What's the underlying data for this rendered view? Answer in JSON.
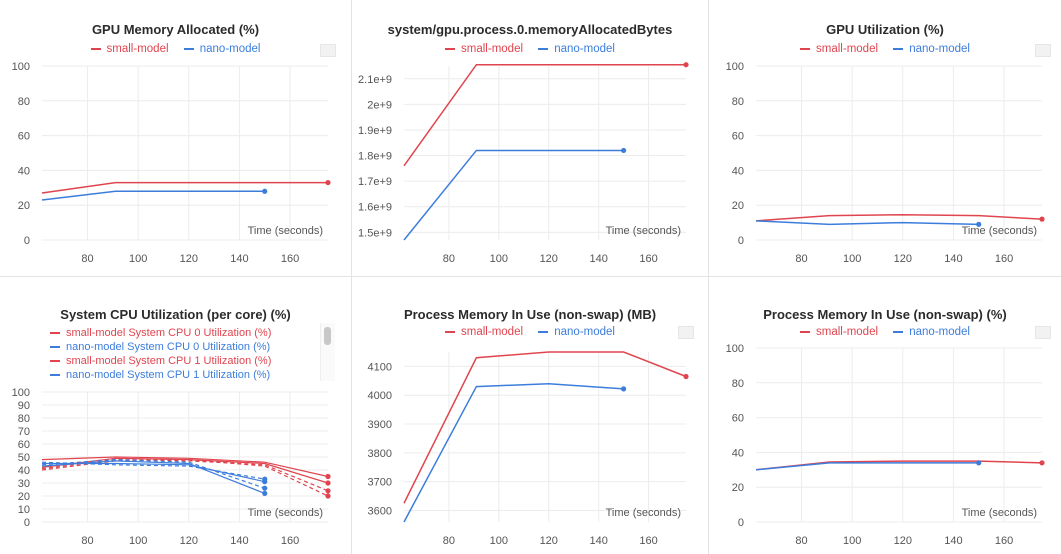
{
  "colors": {
    "red": "#e0454f",
    "blue": "#3c7ddc"
  },
  "series_names": {
    "red": "small-model",
    "blue": "nano-model"
  },
  "time_label": "Time (seconds)",
  "x_ticks": [
    "80",
    "100",
    "120",
    "140",
    "160"
  ],
  "panels": [
    {
      "title": "GPU Memory Allocated (%)",
      "y_ticks": [
        "0",
        "20",
        "40",
        "60",
        "80",
        "100"
      ],
      "chart_data": {
        "type": "line",
        "ylim": [
          0,
          100
        ],
        "xlim": [
          62,
          175
        ],
        "xlabel": "Time (seconds)",
        "series": [
          {
            "name": "small-model",
            "x": [
              62,
              91,
              120,
              150,
              175
            ],
            "y": [
              27,
              33,
              33,
              33,
              33
            ]
          },
          {
            "name": "nano-model",
            "x": [
              62,
              91,
              120,
              150
            ],
            "y": [
              23,
              28,
              28,
              28
            ]
          }
        ]
      }
    },
    {
      "title": "system/gpu.process.0.memoryAllocatedBytes",
      "y_ticks": [
        "1.5e+9",
        "1.6e+9",
        "1.7e+9",
        "1.8e+9",
        "1.9e+9",
        "2e+9",
        "2.1e+9"
      ],
      "chart_data": {
        "type": "line",
        "ylim": [
          1470000000.0,
          2150000000.0
        ],
        "xlim": [
          62,
          175
        ],
        "xlabel": "Time (seconds)",
        "series": [
          {
            "name": "small-model",
            "x": [
              62,
              91,
              120,
              150,
              175
            ],
            "y": [
              1760000000.0,
              2155000000.0,
              2155000000.0,
              2155000000.0,
              2155000000.0
            ]
          },
          {
            "name": "nano-model",
            "x": [
              62,
              91,
              120,
              150
            ],
            "y": [
              1470000000.0,
              1820000000.0,
              1820000000.0,
              1820000000.0
            ]
          }
        ]
      }
    },
    {
      "title": "GPU Utilization (%)",
      "y_ticks": [
        "0",
        "20",
        "40",
        "60",
        "80",
        "100"
      ],
      "chart_data": {
        "type": "line",
        "ylim": [
          0,
          100
        ],
        "xlim": [
          62,
          175
        ],
        "xlabel": "Time (seconds)",
        "series": [
          {
            "name": "small-model",
            "x": [
              62,
              91,
              120,
              150,
              175
            ],
            "y": [
              11,
              14,
              14.5,
              14,
              12
            ]
          },
          {
            "name": "nano-model",
            "x": [
              62,
              91,
              120,
              150
            ],
            "y": [
              11,
              9,
              10,
              9
            ]
          }
        ]
      }
    },
    {
      "title": "System CPU Utilization (per core) (%)",
      "y_ticks": [
        "0",
        "10",
        "20",
        "30",
        "40",
        "50",
        "60",
        "70",
        "80",
        "90",
        "100"
      ],
      "legend_rows": [
        {
          "label": "small-model System CPU 0 Utilization (%)",
          "color": "red",
          "dashed": false
        },
        {
          "label": "nano-model System CPU 0 Utilization (%)",
          "color": "blue",
          "dashed": false
        },
        {
          "label": "small-model System CPU 1 Utilization (%)",
          "color": "red",
          "dashed": true
        },
        {
          "label": "nano-model System CPU 1 Utilization (%)",
          "color": "blue",
          "dashed": true
        }
      ],
      "chart_data": {
        "type": "line",
        "ylim": [
          0,
          100
        ],
        "xlim": [
          62,
          175
        ],
        "xlabel": "Time (seconds)",
        "series": [
          {
            "name": "small-model System CPU 0 Utilization (%)",
            "x": [
              62,
              91,
              120,
              150,
              175
            ],
            "y": [
              42,
              49,
              48,
              45,
              30
            ]
          },
          {
            "name": "small-model System CPU 0 Utilization (%)",
            "x": [
              62,
              91,
              120,
              150,
              175
            ],
            "y": [
              41,
              48,
              47,
              44,
              24
            ]
          },
          {
            "name": "small-model System CPU 1 Utilization (%)",
            "x": [
              62,
              91,
              120,
              150,
              175
            ],
            "y": [
              48,
              50,
              49,
              46,
              35
            ]
          },
          {
            "name": "small-model System CPU 1 Utilization (%)",
            "x": [
              62,
              91,
              120,
              150,
              175
            ],
            "y": [
              40,
              47,
              48,
              43,
              20
            ]
          },
          {
            "name": "nano-model System CPU 0 Utilization (%)",
            "x": [
              62,
              91,
              120,
              150
            ],
            "y": [
              45,
              45,
              44,
              31
            ]
          },
          {
            "name": "nano-model System CPU 0 Utilization (%)",
            "x": [
              62,
              91,
              120,
              150
            ],
            "y": [
              44,
              48,
              46,
              26
            ]
          },
          {
            "name": "nano-model System CPU 1 Utilization (%)",
            "x": [
              62,
              91,
              120,
              150
            ],
            "y": [
              43,
              47,
              45,
              22
            ]
          },
          {
            "name": "nano-model System CPU 1 Utilization (%)",
            "x": [
              62,
              91,
              120,
              150
            ],
            "y": [
              46,
              44,
              43,
              33
            ]
          }
        ]
      }
    },
    {
      "title": "Process Memory In Use (non-swap) (MB)",
      "y_ticks": [
        "3600",
        "3700",
        "3800",
        "3900",
        "4000",
        "4100"
      ],
      "chart_data": {
        "type": "line",
        "ylim": [
          3560,
          4150
        ],
        "xlim": [
          62,
          175
        ],
        "xlabel": "Time (seconds)",
        "series": [
          {
            "name": "small-model",
            "x": [
              62,
              91,
              120,
              150,
              175
            ],
            "y": [
              3625,
              4130,
              4150,
              4150,
              4065
            ]
          },
          {
            "name": "nano-model",
            "x": [
              62,
              91,
              120,
              150
            ],
            "y": [
              3560,
              4030,
              4040,
              4022
            ]
          }
        ]
      }
    },
    {
      "title": "Process Memory In Use (non-swap) (%)",
      "y_ticks": [
        "0",
        "20",
        "40",
        "60",
        "80",
        "100"
      ],
      "chart_data": {
        "type": "line",
        "ylim": [
          0,
          100
        ],
        "xlim": [
          62,
          175
        ],
        "xlabel": "Time (seconds)",
        "series": [
          {
            "name": "small-model",
            "x": [
              62,
              91,
              120,
              150,
              175
            ],
            "y": [
              30,
              34.5,
              35,
              35,
              34
            ]
          },
          {
            "name": "nano-model",
            "x": [
              62,
              91,
              120,
              150
            ],
            "y": [
              30,
              34,
              34,
              34
            ]
          }
        ]
      }
    }
  ]
}
